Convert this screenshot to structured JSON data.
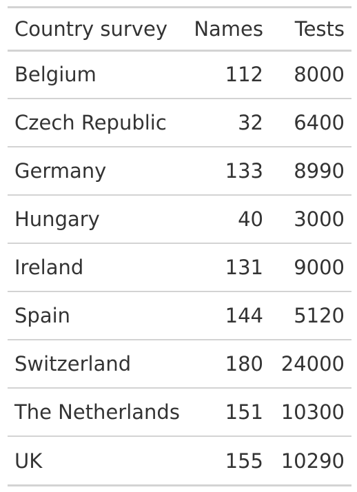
{
  "table": {
    "columns": [
      "Country survey",
      "Names",
      "Tests"
    ],
    "rows": [
      {
        "country": "Belgium",
        "names": "112",
        "tests": "8000"
      },
      {
        "country": "Czech Republic",
        "names": "32",
        "tests": "6400"
      },
      {
        "country": "Germany",
        "names": "133",
        "tests": "8990"
      },
      {
        "country": "Hungary",
        "names": "40",
        "tests": "3000"
      },
      {
        "country": "Ireland",
        "names": "131",
        "tests": "9000"
      },
      {
        "country": "Spain",
        "names": "144",
        "tests": "5120"
      },
      {
        "country": "Switzerland",
        "names": "180",
        "tests": "24000"
      },
      {
        "country": "The Netherlands",
        "names": "151",
        "tests": "10300"
      },
      {
        "country": "UK",
        "names": "155",
        "tests": "10290"
      }
    ]
  }
}
